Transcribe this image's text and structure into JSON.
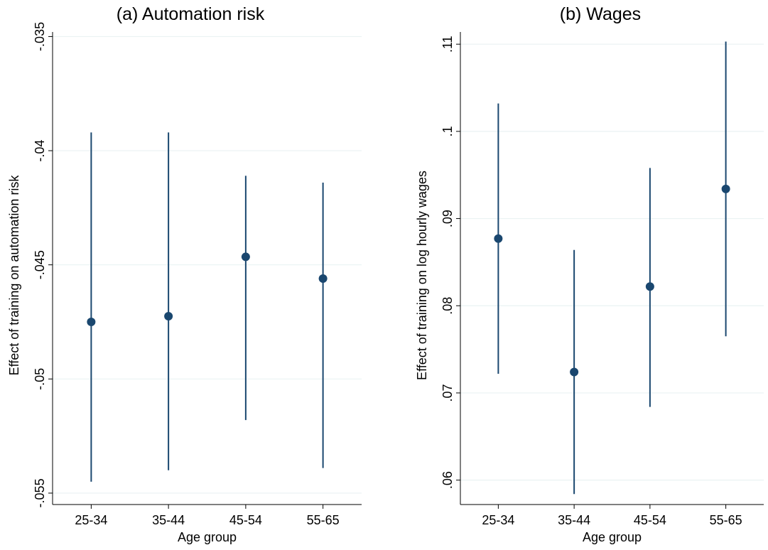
{
  "chart_data": [
    {
      "type": "scatter",
      "title": "(a) Automation risk",
      "xlabel": "Age group",
      "ylabel": "Effect of training on automation risk",
      "categories": [
        "25-34",
        "35-44",
        "45-54",
        "55-65"
      ],
      "values": [
        -0.0475,
        -0.04725,
        -0.04465,
        -0.0456
      ],
      "ci_low": [
        -0.0545,
        -0.054,
        -0.0518,
        -0.0539
      ],
      "ci_high": [
        -0.0392,
        -0.0392,
        -0.0411,
        -0.0414
      ],
      "yticks": [
        -0.055,
        -0.05,
        -0.045,
        -0.04,
        -0.035
      ],
      "ytick_labels": [
        "-.055",
        "-.05",
        "-.045",
        "-.04",
        "-.035"
      ],
      "ylim": [
        -0.0555,
        -0.0348
      ],
      "grid": true,
      "colors": {
        "marker": "#1a476f",
        "grid": "#eaf2f3"
      }
    },
    {
      "type": "scatter",
      "title": "(b) Wages",
      "xlabel": "Age group",
      "ylabel": "Effect of training on log hourly wages",
      "categories": [
        "25-34",
        "35-44",
        "45-54",
        "55-65"
      ],
      "values": [
        0.0877,
        0.0724,
        0.0822,
        0.0934
      ],
      "ci_low": [
        0.0722,
        0.0584,
        0.0684,
        0.0765
      ],
      "ci_high": [
        0.1032,
        0.0864,
        0.0958,
        0.1103
      ],
      "yticks": [
        0.06,
        0.07,
        0.08,
        0.09,
        0.1,
        0.11
      ],
      "ytick_labels": [
        ".06",
        ".07",
        ".08",
        ".09",
        ".1",
        ".11"
      ],
      "ylim": [
        0.0572,
        0.1114
      ],
      "grid": true,
      "colors": {
        "marker": "#1a476f",
        "grid": "#eaf2f3"
      }
    }
  ]
}
